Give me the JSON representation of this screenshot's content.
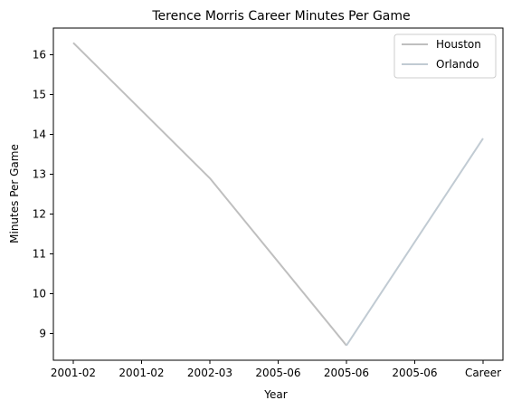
{
  "chart_data": {
    "type": "line",
    "title": "Terence Morris Career Minutes Per Game",
    "xlabel": "Year",
    "ylabel": "Minutes Per Game",
    "categories": [
      "2001-02",
      "2001-02",
      "2002-03",
      "2005-06",
      "2005-06",
      "2005-06",
      "Career"
    ],
    "ylim": [
      8.33,
      16.67
    ],
    "yticks": [
      9,
      10,
      11,
      12,
      13,
      14,
      15,
      16
    ],
    "grid": false,
    "legend_position": "top-right",
    "series": [
      {
        "name": "Houston",
        "color": "#bfbfbf",
        "points": [
          {
            "x": 0,
            "y": 16.3
          },
          {
            "x": 2,
            "y": 12.9
          },
          {
            "x": 4,
            "y": 8.7
          }
        ]
      },
      {
        "name": "Orlando",
        "color": "#c1cbd3",
        "points": [
          {
            "x": 4,
            "y": 8.7
          },
          {
            "x": 6,
            "y": 13.9
          }
        ]
      }
    ]
  }
}
